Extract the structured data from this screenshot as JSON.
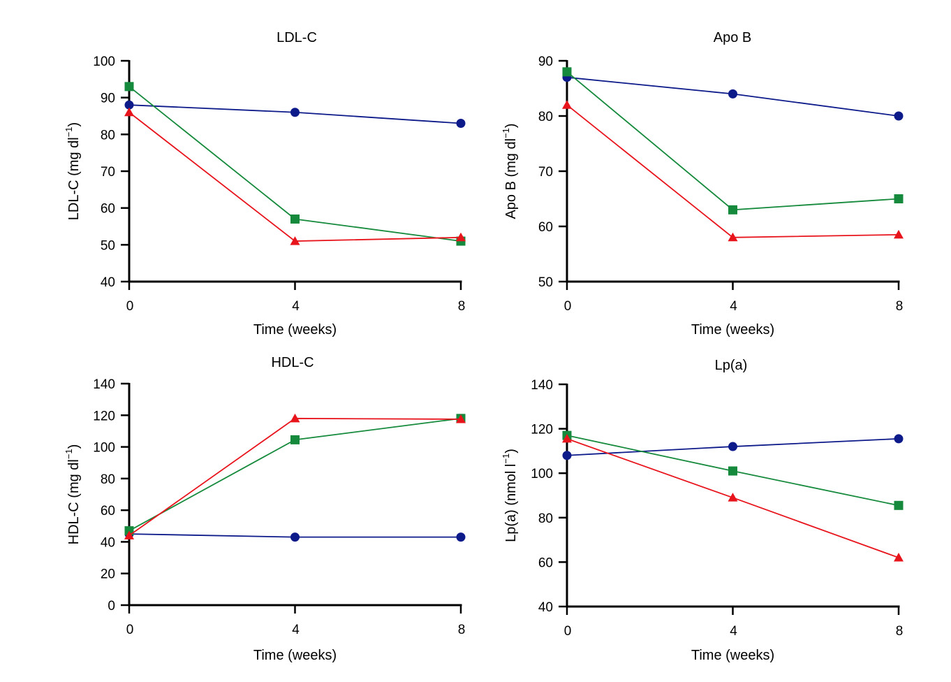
{
  "chart_data": [
    {
      "type": "line",
      "title": "LDL-C",
      "xlabel": "Time (weeks)",
      "ylabel": {
        "text": "LDL-C (mg dl",
        "sup": "−1",
        "after": ")"
      },
      "x": [
        0,
        4,
        8
      ],
      "xlim": [
        0,
        8
      ],
      "xticks": [
        "0",
        "4",
        "8"
      ],
      "ylim": [
        40,
        100
      ],
      "yticks": [
        "40",
        "50",
        "60",
        "70",
        "80",
        "90",
        "100"
      ],
      "series": [
        {
          "marker": "circle",
          "color": "#0d1a8a",
          "values": [
            88,
            86,
            83
          ]
        },
        {
          "marker": "square",
          "color": "#168a3c",
          "values": [
            93,
            57,
            51
          ]
        },
        {
          "marker": "triangle",
          "color": "#e8141c",
          "values": [
            86,
            51,
            52
          ]
        }
      ],
      "grid": false
    },
    {
      "type": "line",
      "title": "Apo B",
      "xlabel": "Time (weeks)",
      "ylabel": {
        "text": "Apo B (mg dl",
        "sup": "−1",
        "after": ")"
      },
      "x": [
        0,
        4,
        8
      ],
      "xlim": [
        0,
        8
      ],
      "xticks": [
        "0",
        "4",
        "8"
      ],
      "ylim": [
        50,
        90
      ],
      "yticks": [
        "50",
        "60",
        "70",
        "80",
        "90"
      ],
      "series": [
        {
          "marker": "circle",
          "color": "#0d1a8a",
          "values": [
            87,
            84,
            80
          ]
        },
        {
          "marker": "square",
          "color": "#168a3c",
          "values": [
            88,
            63,
            65
          ]
        },
        {
          "marker": "triangle",
          "color": "#e8141c",
          "values": [
            82,
            58,
            58.5
          ]
        }
      ],
      "grid": false
    },
    {
      "type": "line",
      "title": "HDL-C",
      "xlabel": "Time (weeks)",
      "ylabel": {
        "text": "HDL-C (mg dl",
        "sup": "−1",
        "after": ")"
      },
      "x": [
        0,
        4,
        8
      ],
      "xlim": [
        0,
        8
      ],
      "xticks": [
        "0",
        "4",
        "8"
      ],
      "ylim": [
        0,
        140
      ],
      "yticks": [
        "0",
        "20",
        "40",
        "60",
        "80",
        "100",
        "120",
        "140"
      ],
      "series": [
        {
          "marker": "circle",
          "color": "#0d1a8a",
          "values": [
            45,
            43,
            43
          ]
        },
        {
          "marker": "square",
          "color": "#168a3c",
          "values": [
            47,
            104.5,
            118
          ]
        },
        {
          "marker": "triangle",
          "color": "#e8141c",
          "values": [
            44,
            118,
            117.5
          ]
        }
      ],
      "grid": false
    },
    {
      "type": "line",
      "title": "Lp(a)",
      "xlabel": "Time (weeks)",
      "ylabel": {
        "text": "Lp(a) (nmol l",
        "sup": "−1",
        "after": ")"
      },
      "x": [
        0,
        4,
        8
      ],
      "xlim": [
        0,
        8
      ],
      "xticks": [
        "0",
        "4",
        "8"
      ],
      "ylim": [
        40,
        140
      ],
      "yticks": [
        "40",
        "60",
        "80",
        "100",
        "120",
        "140"
      ],
      "series": [
        {
          "marker": "circle",
          "color": "#0d1a8a",
          "values": [
            108,
            112,
            115.5
          ]
        },
        {
          "marker": "square",
          "color": "#168a3c",
          "values": [
            117,
            101,
            85.5
          ]
        },
        {
          "marker": "triangle",
          "color": "#e8141c",
          "values": [
            115.5,
            89,
            62
          ]
        }
      ],
      "grid": false
    }
  ]
}
